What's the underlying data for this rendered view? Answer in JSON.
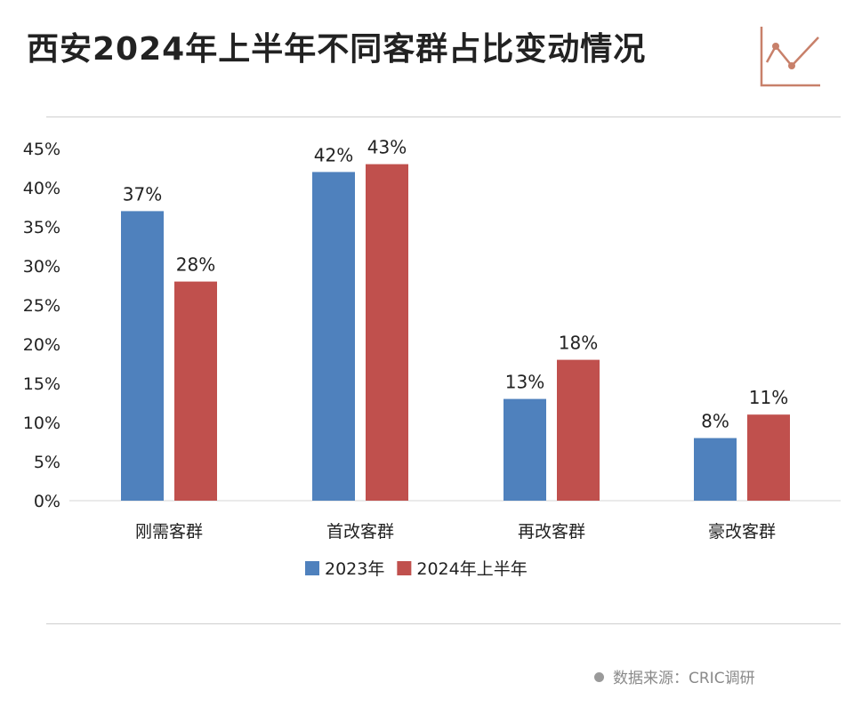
{
  "header": {
    "title": "西安2024年上半年不同客群占比变动情况",
    "logo_icon": "line-chart-icon"
  },
  "chart_data": {
    "type": "bar",
    "title": "西安2024年上半年不同客群占比变动情况",
    "xlabel": "",
    "ylabel": "",
    "ylim": [
      0,
      45
    ],
    "yticks": [
      "0%",
      "5%",
      "10%",
      "15%",
      "20%",
      "25%",
      "30%",
      "35%",
      "40%",
      "45%"
    ],
    "tick_values": [
      0,
      5,
      10,
      15,
      20,
      25,
      30,
      35,
      40,
      45
    ],
    "categories": [
      "刚需客群",
      "首改客群",
      "再改客群",
      "豪改客群"
    ],
    "series": [
      {
        "name": "2023年",
        "color": "#4f81bd",
        "values": [
          37,
          42,
          13,
          8
        ],
        "labels": [
          "37%",
          "42%",
          "13%",
          "8%"
        ]
      },
      {
        "name": "2024年上半年",
        "color": "#c0504d",
        "values": [
          28,
          43,
          18,
          11
        ],
        "labels": [
          "28%",
          "43%",
          "18%",
          "11%"
        ]
      }
    ],
    "legend_position": "bottom-center",
    "grid": false
  },
  "footer": {
    "source": "数据来源：CRIC调研"
  },
  "colors": {
    "accent": "#c8806a",
    "series_2023": "#4f81bd",
    "series_2024": "#c0504d"
  }
}
